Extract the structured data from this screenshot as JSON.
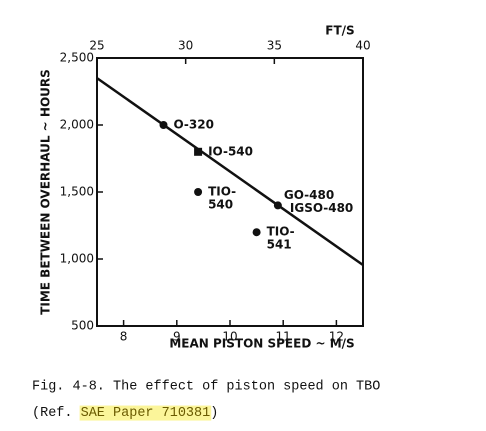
{
  "chart_data": {
    "type": "scatter",
    "x_label": "MEAN PISTON SPEED ~ M/S",
    "y_label": "TIME BETWEEN OVERHAUL ~ HOURS",
    "x2_label": "FT/S",
    "xlim": [
      7.5,
      12.5
    ],
    "xticks": [
      8,
      9,
      10,
      11,
      12
    ],
    "x2lim": [
      25,
      40
    ],
    "x2ticks": [
      25,
      30,
      35,
      40
    ],
    "ylim": [
      500,
      2500
    ],
    "yticks": [
      {
        "value": 500,
        "label": "500"
      },
      {
        "value": 1000,
        "label": "1,000"
      },
      {
        "value": 1500,
        "label": "1,500"
      },
      {
        "value": 2000,
        "label": "2,000"
      },
      {
        "value": 2500,
        "label": "2,500"
      }
    ],
    "color": "#111111",
    "trend_line": {
      "x": [
        7.5,
        12.5
      ],
      "y": [
        2350,
        955
      ]
    },
    "points": [
      {
        "label_lines": [
          "O-320"
        ],
        "marker": "circle",
        "x": 8.75,
        "y": 2000
      },
      {
        "label_lines": [
          "IO-540"
        ],
        "marker": "square",
        "x": 9.4,
        "y": 1800
      },
      {
        "label_lines": [
          "TIO-",
          "540"
        ],
        "marker": "circle",
        "x": 9.4,
        "y": 1500
      },
      {
        "label_lines": [
          "GO-480",
          "IGSO-480"
        ],
        "marker": "circle",
        "x": 10.9,
        "y": 1400
      },
      {
        "label_lines": [
          "TIO-",
          "541"
        ],
        "marker": "circle",
        "x": 10.5,
        "y": 1200
      }
    ],
    "caption": "Fig. 4-8. The effect of piston speed on TBO",
    "caption_ref": [
      "(Ref. ",
      "SAE Paper 710381",
      ")"
    ]
  }
}
